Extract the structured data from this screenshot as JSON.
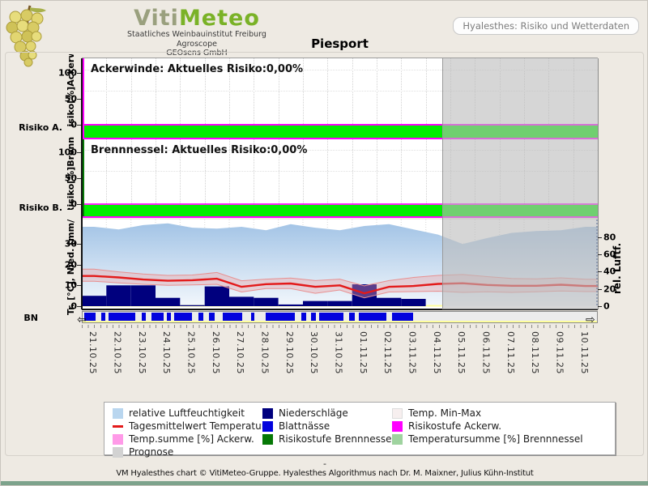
{
  "header": {
    "logo": {
      "title_part1": "Viti",
      "title_part2": "Meteo",
      "subline1": "Staatliches Weinbauinstitut Freiburg",
      "subline2": "Agroscope",
      "subline3": "GEOsens GmbH"
    },
    "info_box_label": "Hyalesthes: Risiko und Wetterdaten",
    "page_title": "Piesport"
  },
  "panels": {
    "ackerwinde": {
      "title": "Ackerwinde: Aktuelles Risiko:0,00%",
      "axis_label": "Risiko[%]Ackerw.",
      "side_label": "Risiko A.",
      "ticks": [
        0,
        50,
        100
      ]
    },
    "brennnessel": {
      "title": "Brennnessel: Aktuelles Risiko:0,00%",
      "axis_label": "Risiko[%]Brenn.",
      "side_label": "Risiko B.",
      "ticks": [
        0,
        50,
        100
      ]
    },
    "weather": {
      "axis_label_left": "Tr. [°C], Nied. [mm/",
      "axis_label_right": "rel. Luftf.",
      "bn_label": "BN",
      "ticks_left": [
        0,
        10,
        20,
        30
      ],
      "ticks_right": [
        0,
        20,
        40,
        60,
        80
      ]
    }
  },
  "chart_data": {
    "type": "multi-panel: area (humidity) + line (temperature) + bar (precipitation) + risk bands",
    "dates": [
      "21.10.25",
      "22.10.25",
      "23.10.25",
      "24.10.25",
      "25.10.25",
      "26.10.25",
      "27.10.25",
      "28.10.25",
      "29.10.25",
      "30.10.25",
      "31.10.25",
      "01.11.25",
      "02.11.25",
      "03.11.25",
      "04.11.25",
      "05.11.25",
      "06.11.25",
      "07.11.25",
      "08.11.25",
      "09.11.25",
      "10.11.25"
    ],
    "forecast_start_day": 14.67,
    "risk_panels": [
      {
        "name": "Ackerwinde",
        "current_risk_pct": 0.0,
        "risk_band": "green",
        "ylim": [
          0,
          100
        ]
      },
      {
        "name": "Brennnessel",
        "current_risk_pct": 0.0,
        "risk_band": "green",
        "ylim": [
          0,
          100
        ]
      }
    ],
    "weather": {
      "ylim_left_celsius": [
        0,
        39
      ],
      "ylim_right_humidity_pct": [
        0,
        100
      ],
      "temperature_mean_c": [
        14.5,
        13.8,
        12.8,
        12.2,
        12.5,
        13.2,
        9.3,
        10.6,
        10.9,
        9.3,
        10.0,
        6.2,
        9.3,
        9.7,
        10.7,
        11.0,
        10.2,
        9.8,
        9.8,
        10.3,
        9.7
      ],
      "temperature_min_c": [
        12.0,
        11.2,
        10.5,
        10.0,
        10.2,
        10.5,
        6.8,
        8.5,
        8.5,
        6.2,
        7.8,
        4.0,
        6.8,
        7.0,
        7.2,
        6.6,
        6.9,
        6.6,
        6.9,
        7.3,
        7.0
      ],
      "temperature_max_c": [
        17.8,
        16.5,
        15.5,
        14.8,
        15.0,
        16.2,
        12.2,
        13.0,
        13.5,
        12.3,
        13.0,
        9.8,
        12.3,
        13.8,
        14.8,
        15.2,
        14.2,
        13.3,
        13.1,
        13.6,
        12.9
      ],
      "humidity_pct": [
        92,
        89,
        94,
        96,
        91,
        90,
        92,
        88,
        95,
        91,
        88,
        93,
        95,
        89,
        83,
        72,
        79,
        85,
        87,
        88,
        92
      ],
      "precipitation_mm": [
        5,
        10,
        10,
        4,
        0.5,
        9.5,
        4.5,
        4,
        0.8,
        2.5,
        2.5,
        10.5,
        4,
        3.5,
        0,
        0,
        0,
        0,
        0,
        0,
        0
      ],
      "leaf_wetness_segments_days": [
        [
          0.08,
          0.52
        ],
        [
          0.75,
          0.92
        ],
        [
          1.05,
          2.15
        ],
        [
          2.4,
          2.56
        ],
        [
          2.8,
          3.3
        ],
        [
          3.42,
          3.58
        ],
        [
          3.72,
          4.45
        ],
        [
          4.7,
          4.92
        ],
        [
          5.15,
          5.38
        ],
        [
          5.7,
          6.5
        ],
        [
          6.85,
          7.0
        ],
        [
          7.45,
          8.62
        ],
        [
          8.9,
          9.08
        ],
        [
          9.3,
          9.48
        ],
        [
          9.62,
          10.62
        ],
        [
          10.85,
          11.08
        ],
        [
          11.25,
          12.35
        ],
        [
          12.6,
          13.45
        ]
      ]
    }
  },
  "legend": {
    "columns": [
      [
        {
          "label": "relative Luftfeuchtigkeit",
          "kind": "box",
          "color": "#b9d6ef"
        },
        {
          "label": "Tagesmittelwert Temperatur",
          "kind": "line",
          "color": "#e31a1a"
        },
        {
          "label": "Temp.summe [%] Ackerw.",
          "kind": "box",
          "color": "#ff9ae8"
        },
        {
          "label": "Prognose",
          "kind": "box",
          "color": "#d2d2d2"
        }
      ],
      [
        {
          "label": "Niederschläge",
          "kind": "box",
          "color": "#00007e"
        },
        {
          "label": "Blattnässe",
          "kind": "box",
          "color": "#0202dd"
        },
        {
          "label": "Risikostufe Brennnessel",
          "kind": "box",
          "color": "#067806"
        }
      ],
      [
        {
          "label": "Temp. Min-Max",
          "kind": "box",
          "color": "#f7efef"
        },
        {
          "label": "Risikostufe Ackerw.",
          "kind": "box",
          "color": "#ff00ff"
        },
        {
          "label": "Temperatursumme [%] Brennnessel",
          "kind": "box",
          "color": "#9fd39f"
        }
      ]
    ]
  },
  "footer": {
    "dash": "-",
    "credit": "VM Hyalesthes chart © VitiMeteo-Gruppe. Hyalesthes Algorithmus nach Dr. M. Maixner, Julius Kühn-Institut"
  },
  "colors": {
    "risk_ok_green": "#00ee00",
    "risk_ackerw_magenta": "#ff00ff",
    "risk_brenn_green": "#067806",
    "temperature_red": "#e31a1a",
    "precip_navy": "#00007e",
    "leafwet_blue": "#0202dd",
    "humidity_blue": "#a8c8e8",
    "forecast_gray": "#bbbbbb",
    "background_beige": "#eeeae3"
  }
}
